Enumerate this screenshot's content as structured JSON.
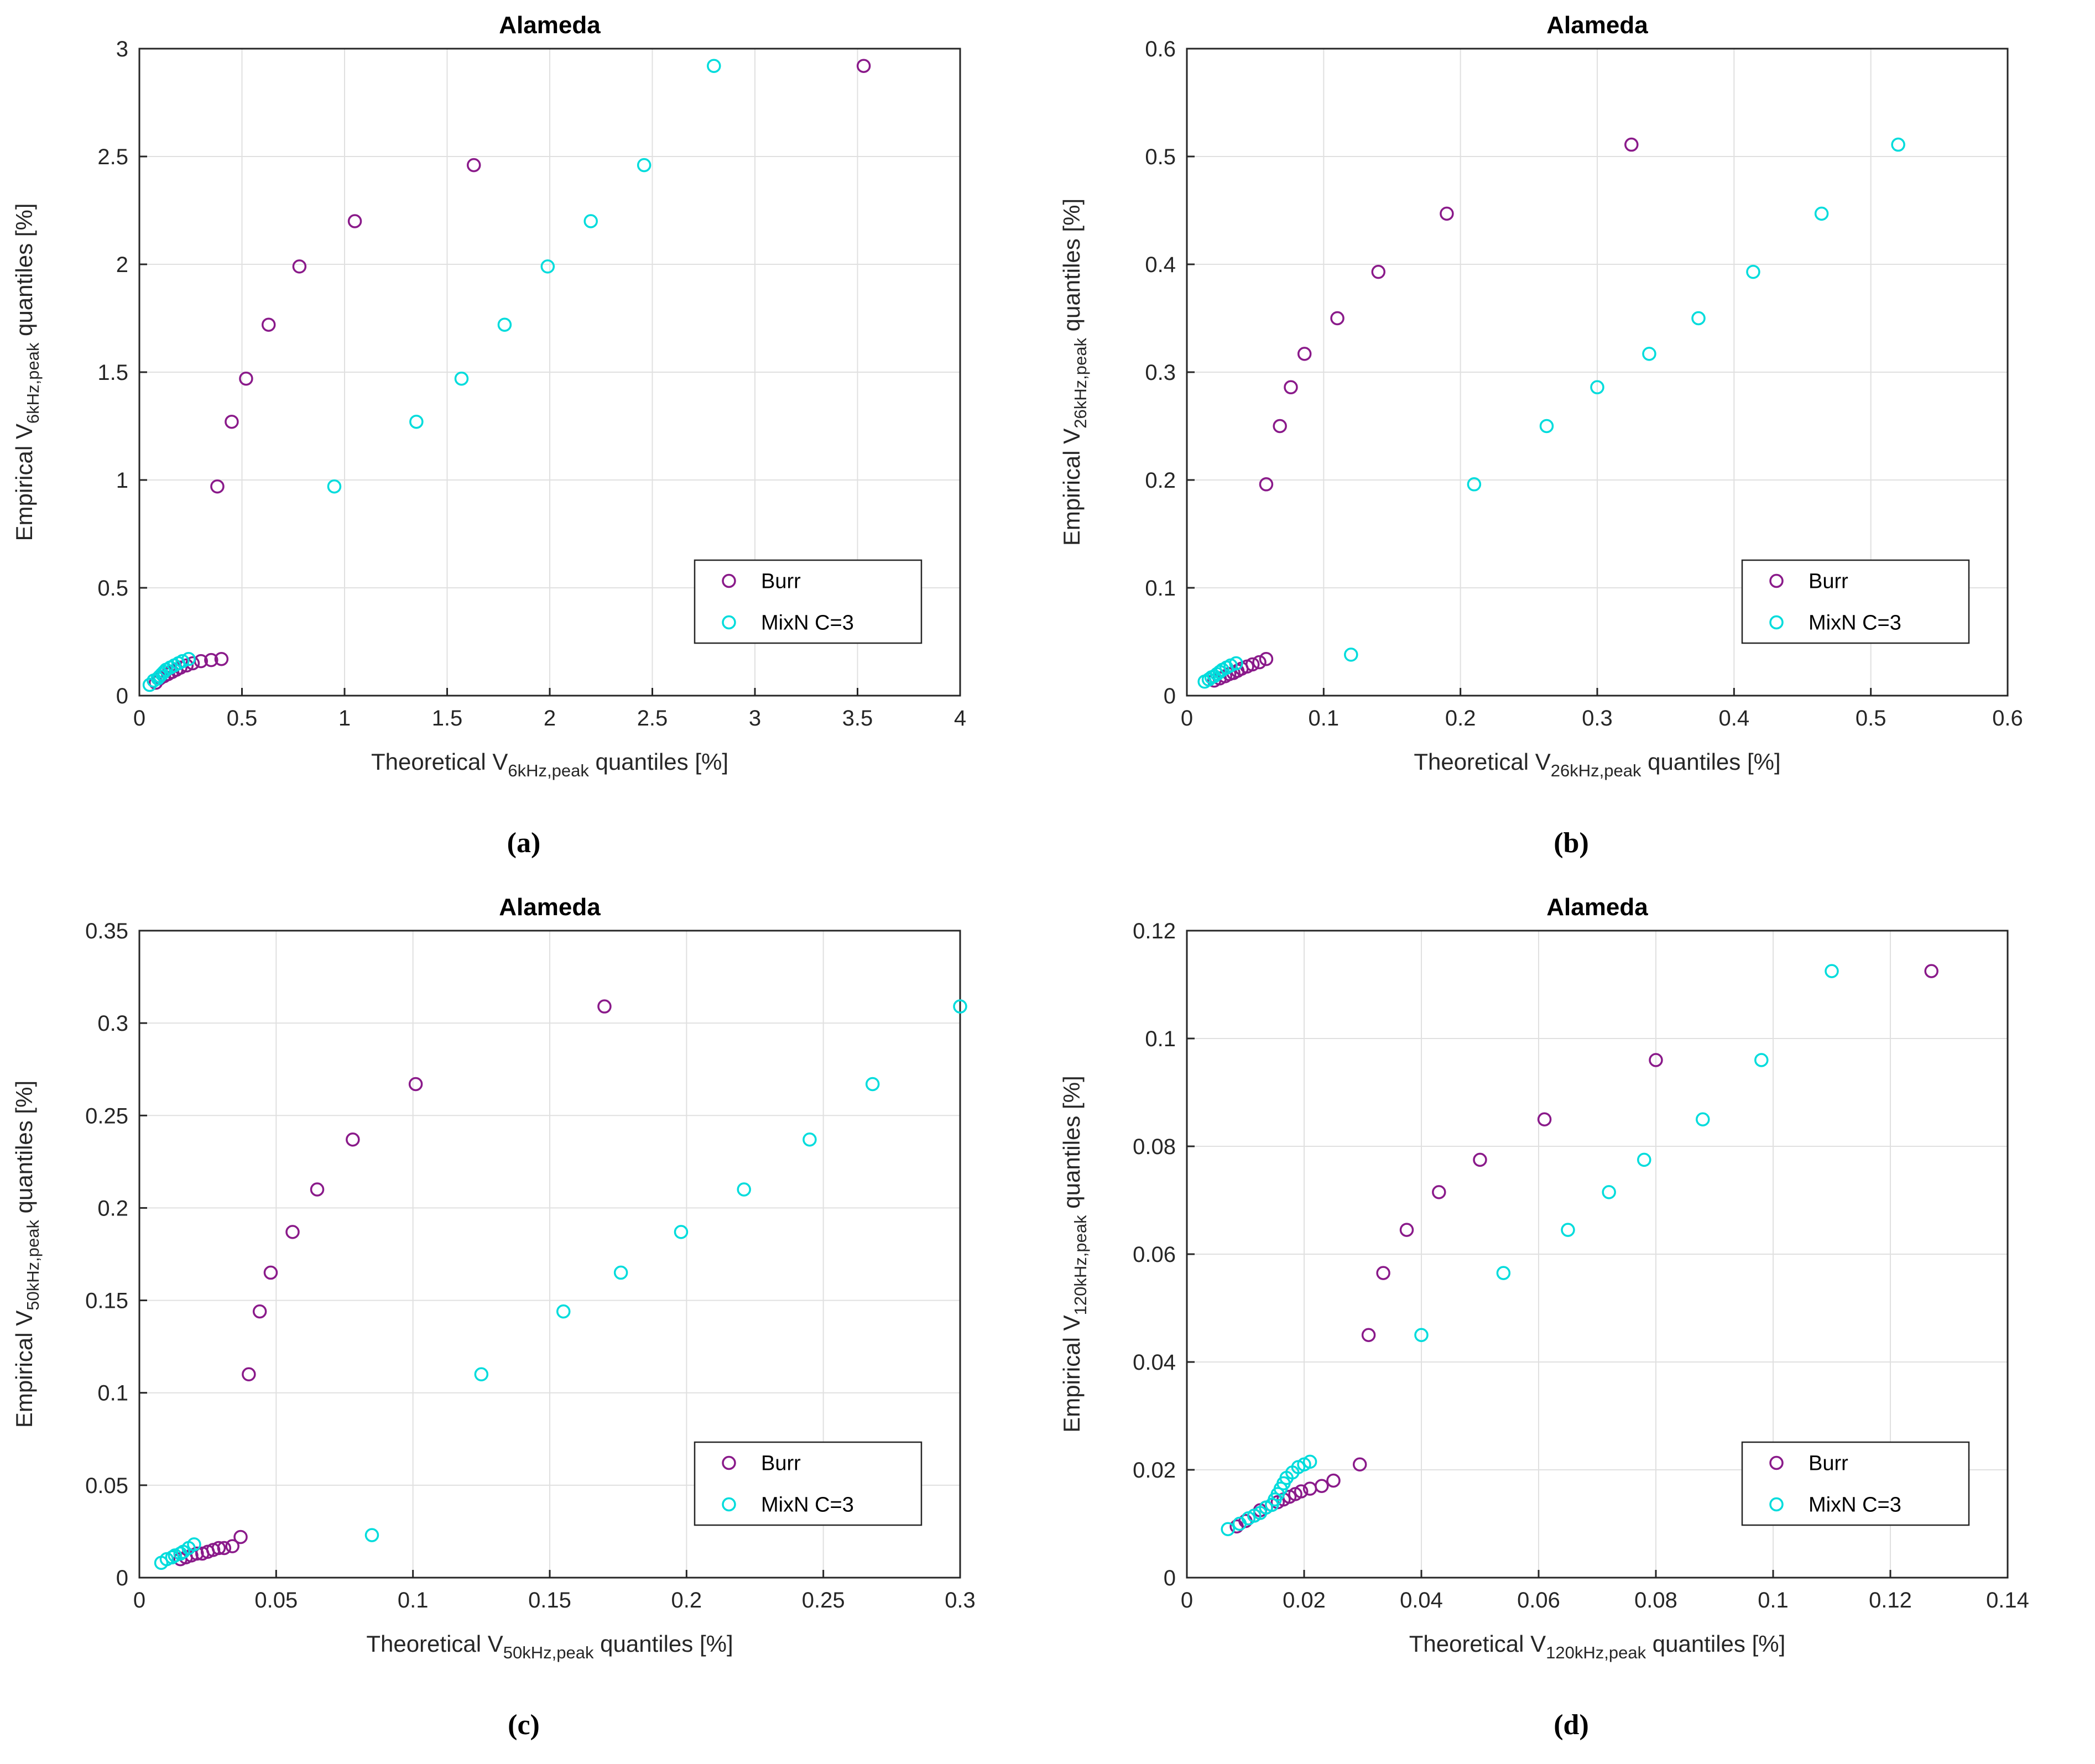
{
  "captions": [
    "(a)",
    "(b)",
    "(c)",
    "(d)"
  ],
  "style": {
    "background": "#ffffff",
    "grid_color": "#e0e0e0",
    "axis_color": "#262626",
    "burr_color": "#8a1a8a",
    "mixn_color": "#00dcdc"
  },
  "chart_data": [
    {
      "type": "scatter",
      "title": "Alameda",
      "grid": true,
      "legend_position": "bottom-right",
      "xlabel_parts": [
        {
          "t": "Theoretical V"
        },
        {
          "t": "6kHz,peak",
          "sub": true
        },
        {
          "t": " quantiles [%]"
        }
      ],
      "ylabel_parts": [
        {
          "t": "Empirical V"
        },
        {
          "t": "6kHz,peak",
          "sub": true
        },
        {
          "t": " quantiles [%]"
        }
      ],
      "xlim": [
        0,
        4
      ],
      "ylim": [
        0,
        3
      ],
      "xticks": [
        0,
        0.5,
        1,
        1.5,
        2,
        2.5,
        3,
        3.5,
        4
      ],
      "xtick_labels": [
        "0",
        "0.5",
        "1",
        "1.5",
        "2",
        "2.5",
        "3",
        "3.5",
        "4"
      ],
      "yticks": [
        0,
        0.5,
        1,
        1.5,
        2,
        2.5,
        3
      ],
      "ytick_labels": [
        "0",
        "0.5",
        "1",
        "1.5",
        "2",
        "2.5",
        "3"
      ],
      "series": [
        {
          "name": "Burr",
          "color": "#8a1a8a",
          "x": [
            0.08,
            0.1,
            0.12,
            0.14,
            0.16,
            0.18,
            0.2,
            0.23,
            0.26,
            0.3,
            0.35,
            0.4,
            0.38,
            0.45,
            0.52,
            0.63,
            0.78,
            1.05,
            1.63,
            3.53
          ],
          "y": [
            0.06,
            0.08,
            0.09,
            0.1,
            0.11,
            0.12,
            0.13,
            0.14,
            0.15,
            0.16,
            0.165,
            0.17,
            0.97,
            1.27,
            1.47,
            1.72,
            1.99,
            2.2,
            2.46,
            2.92
          ]
        },
        {
          "name": "MixN C=3",
          "color": "#00dcdc",
          "x": [
            0.05,
            0.07,
            0.09,
            0.1,
            0.11,
            0.12,
            0.13,
            0.15,
            0.17,
            0.19,
            0.21,
            0.24,
            0.95,
            1.35,
            1.57,
            1.78,
            1.99,
            2.2,
            2.46,
            2.8
          ],
          "y": [
            0.05,
            0.07,
            0.08,
            0.09,
            0.1,
            0.11,
            0.12,
            0.13,
            0.14,
            0.15,
            0.16,
            0.17,
            0.97,
            1.27,
            1.47,
            1.72,
            1.99,
            2.2,
            2.46,
            2.92
          ]
        }
      ]
    },
    {
      "type": "scatter",
      "title": "Alameda",
      "grid": true,
      "legend_position": "bottom-right",
      "xlabel_parts": [
        {
          "t": "Theoretical V"
        },
        {
          "t": "26kHz,peak",
          "sub": true
        },
        {
          "t": " quantiles [%]"
        }
      ],
      "ylabel_parts": [
        {
          "t": "Empirical V"
        },
        {
          "t": "26kHz,peak",
          "sub": true
        },
        {
          "t": " quantiles [%]"
        }
      ],
      "xlim": [
        0,
        0.6
      ],
      "ylim": [
        0,
        0.6
      ],
      "xticks": [
        0,
        0.1,
        0.2,
        0.3,
        0.4,
        0.5,
        0.6
      ],
      "xtick_labels": [
        "0",
        "0.1",
        "0.2",
        "0.3",
        "0.4",
        "0.5",
        "0.6"
      ],
      "yticks": [
        0,
        0.1,
        0.2,
        0.3,
        0.4,
        0.5,
        0.6
      ],
      "ytick_labels": [
        "0",
        "0.1",
        "0.2",
        "0.3",
        "0.4",
        "0.5",
        "0.6"
      ],
      "series": [
        {
          "name": "Burr",
          "color": "#8a1a8a",
          "x": [
            0.02,
            0.024,
            0.028,
            0.031,
            0.034,
            0.037,
            0.04,
            0.044,
            0.048,
            0.053,
            0.058,
            0.058,
            0.068,
            0.076,
            0.086,
            0.11,
            0.14,
            0.19,
            0.325
          ],
          "y": [
            0.014,
            0.016,
            0.018,
            0.02,
            0.021,
            0.023,
            0.025,
            0.027,
            0.029,
            0.031,
            0.034,
            0.196,
            0.25,
            0.286,
            0.317,
            0.35,
            0.393,
            0.447,
            0.511
          ]
        },
        {
          "name": "MixN C=3",
          "color": "#00dcdc",
          "x": [
            0.013,
            0.016,
            0.018,
            0.02,
            0.022,
            0.024,
            0.026,
            0.029,
            0.032,
            0.036,
            0.12,
            0.21,
            0.263,
            0.3,
            0.338,
            0.374,
            0.414,
            0.464,
            0.52
          ],
          "y": [
            0.013,
            0.015,
            0.017,
            0.018,
            0.02,
            0.022,
            0.024,
            0.026,
            0.028,
            0.03,
            0.038,
            0.196,
            0.25,
            0.286,
            0.317,
            0.35,
            0.393,
            0.447,
            0.511
          ]
        }
      ]
    },
    {
      "type": "scatter",
      "title": "Alameda",
      "grid": true,
      "legend_position": "bottom-right",
      "xlabel_parts": [
        {
          "t": "Theoretical V"
        },
        {
          "t": "50kHz,peak",
          "sub": true
        },
        {
          "t": " quantiles [%]"
        }
      ],
      "ylabel_parts": [
        {
          "t": "Empirical V"
        },
        {
          "t": "50kHz,peak",
          "sub": true
        },
        {
          "t": " quantiles [%]"
        }
      ],
      "xlim": [
        0,
        0.3
      ],
      "ylim": [
        0,
        0.35
      ],
      "xticks": [
        0,
        0.05,
        0.1,
        0.15,
        0.2,
        0.25,
        0.3
      ],
      "xtick_labels": [
        "0",
        "0.05",
        "0.1",
        "0.15",
        "0.2",
        "0.25",
        "0.3"
      ],
      "yticks": [
        0,
        0.05,
        0.1,
        0.15,
        0.2,
        0.25,
        0.3,
        0.35
      ],
      "ytick_labels": [
        "0",
        "0.05",
        "0.1",
        "0.15",
        "0.2",
        "0.25",
        "0.3",
        "0.35"
      ],
      "series": [
        {
          "name": "Burr",
          "color": "#8a1a8a",
          "x": [
            0.015,
            0.017,
            0.019,
            0.021,
            0.023,
            0.025,
            0.027,
            0.029,
            0.031,
            0.034,
            0.037,
            0.04,
            0.044,
            0.048,
            0.056,
            0.065,
            0.078,
            0.101,
            0.17
          ],
          "y": [
            0.01,
            0.011,
            0.012,
            0.013,
            0.013,
            0.014,
            0.015,
            0.016,
            0.016,
            0.017,
            0.022,
            0.11,
            0.144,
            0.165,
            0.187,
            0.21,
            0.237,
            0.267,
            0.309
          ]
        },
        {
          "name": "MixN C=3",
          "color": "#00dcdc",
          "x": [
            0.008,
            0.01,
            0.012,
            0.013,
            0.015,
            0.016,
            0.018,
            0.02,
            0.085,
            0.125,
            0.155,
            0.176,
            0.198,
            0.221,
            0.245,
            0.268,
            0.3
          ],
          "y": [
            0.008,
            0.01,
            0.011,
            0.012,
            0.013,
            0.014,
            0.016,
            0.018,
            0.023,
            0.11,
            0.144,
            0.165,
            0.187,
            0.21,
            0.237,
            0.267,
            0.309
          ]
        }
      ]
    },
    {
      "type": "scatter",
      "title": "Alameda",
      "grid": true,
      "legend_position": "bottom-right",
      "xlabel_parts": [
        {
          "t": "Theoretical V"
        },
        {
          "t": "120kHz,peak",
          "sub": true
        },
        {
          "t": " quantiles [%]"
        }
      ],
      "ylabel_parts": [
        {
          "t": "Empirical V"
        },
        {
          "t": "120kHz,peak",
          "sub": true
        },
        {
          "t": " quantiles [%]"
        }
      ],
      "xlim": [
        0,
        0.14
      ],
      "ylim": [
        0,
        0.12
      ],
      "xticks": [
        0,
        0.02,
        0.04,
        0.06,
        0.08,
        0.1,
        0.12,
        0.14
      ],
      "xtick_labels": [
        "0",
        "0.02",
        "0.04",
        "0.06",
        "0.08",
        "0.1",
        "0.12",
        "0.14"
      ],
      "yticks": [
        0,
        0.02,
        0.04,
        0.06,
        0.08,
        0.1,
        0.12
      ],
      "ytick_labels": [
        "0",
        "0.02",
        "0.04",
        "0.06",
        "0.08",
        "0.1",
        "0.12"
      ],
      "series": [
        {
          "name": "Burr",
          "color": "#8a1a8a",
          "x": [
            0.0085,
            0.01,
            0.0115,
            0.0125,
            0.0135,
            0.0145,
            0.0155,
            0.0165,
            0.0175,
            0.0185,
            0.0195,
            0.021,
            0.023,
            0.025,
            0.0295,
            0.031,
            0.0335,
            0.0375,
            0.043,
            0.05,
            0.061,
            0.08,
            0.127
          ],
          "y": [
            0.0095,
            0.0105,
            0.0115,
            0.0125,
            0.013,
            0.0135,
            0.014,
            0.0145,
            0.015,
            0.0155,
            0.016,
            0.0165,
            0.017,
            0.018,
            0.021,
            0.045,
            0.0565,
            0.0645,
            0.0715,
            0.0775,
            0.085,
            0.096,
            0.1125
          ]
        },
        {
          "name": "MixN C=3",
          "color": "#00dcdc",
          "x": [
            0.007,
            0.009,
            0.0105,
            0.0115,
            0.0125,
            0.0135,
            0.0145,
            0.015,
            0.0155,
            0.016,
            0.0165,
            0.017,
            0.018,
            0.019,
            0.02,
            0.021,
            0.04,
            0.054,
            0.065,
            0.072,
            0.078,
            0.088,
            0.098,
            0.11
          ],
          "y": [
            0.009,
            0.01,
            0.011,
            0.0115,
            0.012,
            0.013,
            0.0135,
            0.0145,
            0.0155,
            0.0165,
            0.0175,
            0.0185,
            0.0195,
            0.0205,
            0.021,
            0.0215,
            0.045,
            0.0565,
            0.0645,
            0.0715,
            0.0775,
            0.085,
            0.096,
            0.1125
          ]
        }
      ]
    }
  ]
}
